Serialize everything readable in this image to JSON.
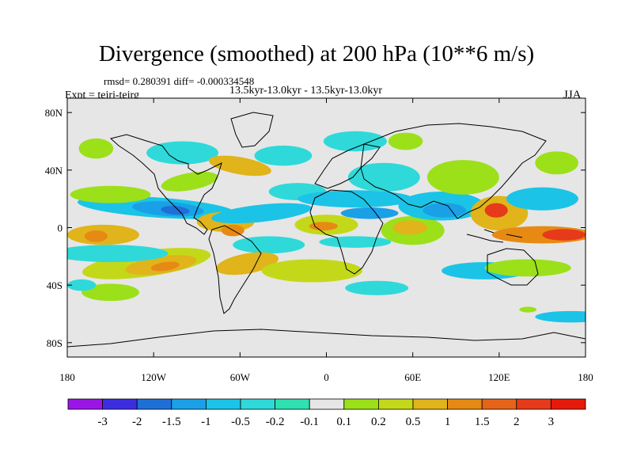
{
  "title": "Divergence (smoothed) at 200 hPa (10**6 m/s)",
  "stats": "rmsd= 0.280391 diff= -0.000334548",
  "period": "13.5kyr-13.0kyr - 13.5kyr-13.0kyr",
  "experiment": "Expt = tejrj-tejrg",
  "season": "JJA",
  "map": {
    "projection": "cylindrical equidistant",
    "lon_range": [
      -180,
      180
    ],
    "lat_range": [
      -90,
      90
    ],
    "lat_ticks": [
      {
        "value": 80,
        "label": "80N"
      },
      {
        "value": 40,
        "label": "40N"
      },
      {
        "value": 0,
        "label": "0"
      },
      {
        "value": -40,
        "label": "40S"
      },
      {
        "value": -80,
        "label": "80S"
      }
    ],
    "lon_ticks": [
      {
        "value": -180,
        "label": "180"
      },
      {
        "value": -120,
        "label": "120W"
      },
      {
        "value": -60,
        "label": "60W"
      },
      {
        "value": 0,
        "label": "0"
      },
      {
        "value": 60,
        "label": "60E"
      },
      {
        "value": 120,
        "label": "120E"
      },
      {
        "value": 180,
        "label": "180"
      }
    ],
    "background_color": "#e6e6e6",
    "coastline_color": "#000000"
  },
  "colorbar": {
    "labels": [
      "-3",
      "-2",
      "-1.5",
      "-1",
      "-0.5",
      "-0.2",
      "-0.1",
      "0.1",
      "0.2",
      "0.5",
      "1",
      "1.5",
      "2",
      "3"
    ],
    "colors": [
      "#9a16e6",
      "#3c2ee0",
      "#1f6fd8",
      "#1aa0e6",
      "#1bc4e6",
      "#2fd9d9",
      "#2fe0b0",
      "#e6e6e6",
      "#9ce01a",
      "#c4d81a",
      "#e0b41a",
      "#e68a14",
      "#e6641a",
      "#e63a1a",
      "#e61a0a"
    ]
  },
  "field_blobs": [
    {
      "lon": -155,
      "lat": -5,
      "rx": 25,
      "ry": 7,
      "color": "#e0b41a",
      "rot": 0
    },
    {
      "lon": -160,
      "lat": -6,
      "rx": 8,
      "ry": 4,
      "color": "#e68a14",
      "rot": 0
    },
    {
      "lon": -125,
      "lat": -25,
      "rx": 45,
      "ry": 9,
      "color": "#c4d81a",
      "rot": -8
    },
    {
      "lon": -115,
      "lat": -26,
      "rx": 25,
      "ry": 6,
      "color": "#e0b41a",
      "rot": -8
    },
    {
      "lon": -112,
      "lat": -27,
      "rx": 10,
      "ry": 3,
      "color": "#e68a14",
      "rot": -8
    },
    {
      "lon": -118,
      "lat": 14,
      "rx": 55,
      "ry": 7,
      "color": "#1bc4e6",
      "rot": 4
    },
    {
      "lon": -110,
      "lat": 13,
      "rx": 25,
      "ry": 5,
      "color": "#1aa0e6",
      "rot": 4
    },
    {
      "lon": -105,
      "lat": 12,
      "rx": 10,
      "ry": 3,
      "color": "#1f6fd8",
      "rot": 4
    },
    {
      "lon": -150,
      "lat": 23,
      "rx": 28,
      "ry": 6,
      "color": "#9ce01a",
      "rot": 0
    },
    {
      "lon": -95,
      "lat": 32,
      "rx": 20,
      "ry": 6,
      "color": "#9ce01a",
      "rot": -10
    },
    {
      "lon": -100,
      "lat": 52,
      "rx": 25,
      "ry": 8,
      "color": "#2fd9d9",
      "rot": 0
    },
    {
      "lon": -150,
      "lat": -18,
      "rx": 40,
      "ry": 6,
      "color": "#2fd9d9",
      "rot": 0
    },
    {
      "lon": -160,
      "lat": 55,
      "rx": 12,
      "ry": 7,
      "color": "#9ce01a",
      "rot": 0
    },
    {
      "lon": -70,
      "lat": 4,
      "rx": 20,
      "ry": 7,
      "color": "#e0b41a",
      "rot": 0
    },
    {
      "lon": -65,
      "lat": -2,
      "rx": 8,
      "ry": 4,
      "color": "#e68a14",
      "rot": 0
    },
    {
      "lon": -45,
      "lat": 10,
      "rx": 35,
      "ry": 6,
      "color": "#1bc4e6",
      "rot": -6
    },
    {
      "lon": -40,
      "lat": -12,
      "rx": 25,
      "ry": 6,
      "color": "#2fd9d9",
      "rot": 0
    },
    {
      "lon": -55,
      "lat": -25,
      "rx": 22,
      "ry": 7,
      "color": "#e0b41a",
      "rot": -10
    },
    {
      "lon": -60,
      "lat": 43,
      "rx": 22,
      "ry": 6,
      "color": "#e0b41a",
      "rot": 10
    },
    {
      "lon": -30,
      "lat": 50,
      "rx": 20,
      "ry": 7,
      "color": "#2fd9d9",
      "rot": 0
    },
    {
      "lon": -20,
      "lat": 25,
      "rx": 20,
      "ry": 6,
      "color": "#2fd9d9",
      "rot": 0
    },
    {
      "lon": 0,
      "lat": 2,
      "rx": 22,
      "ry": 7,
      "color": "#c4d81a",
      "rot": 0
    },
    {
      "lon": -2,
      "lat": 1,
      "rx": 10,
      "ry": 3,
      "color": "#e68a14",
      "rot": 0
    },
    {
      "lon": 20,
      "lat": 20,
      "rx": 40,
      "ry": 6,
      "color": "#1bc4e6",
      "rot": 0
    },
    {
      "lon": 30,
      "lat": 10,
      "rx": 20,
      "ry": 4,
      "color": "#1aa0e6",
      "rot": 0
    },
    {
      "lon": 20,
      "lat": -10,
      "rx": 25,
      "ry": 4,
      "color": "#2fd9d9",
      "rot": 0
    },
    {
      "lon": -10,
      "lat": -30,
      "rx": 35,
      "ry": 8,
      "color": "#c4d81a",
      "rot": 0
    },
    {
      "lon": 35,
      "lat": -42,
      "rx": 22,
      "ry": 5,
      "color": "#2fd9d9",
      "rot": 0
    },
    {
      "lon": 40,
      "lat": 35,
      "rx": 25,
      "ry": 10,
      "color": "#2fd9d9",
      "rot": 0
    },
    {
      "lon": 20,
      "lat": 60,
      "rx": 22,
      "ry": 7,
      "color": "#2fd9d9",
      "rot": 0
    },
    {
      "lon": 55,
      "lat": 60,
      "rx": 12,
      "ry": 6,
      "color": "#9ce01a",
      "rot": 0
    },
    {
      "lon": 60,
      "lat": -2,
      "rx": 22,
      "ry": 10,
      "color": "#9ce01a",
      "rot": 0
    },
    {
      "lon": 58,
      "lat": 0,
      "rx": 12,
      "ry": 5,
      "color": "#e0b41a",
      "rot": 0
    },
    {
      "lon": 80,
      "lat": 15,
      "rx": 30,
      "ry": 10,
      "color": "#1bc4e6",
      "rot": 0
    },
    {
      "lon": 82,
      "lat": 12,
      "rx": 15,
      "ry": 5,
      "color": "#1aa0e6",
      "rot": 0
    },
    {
      "lon": 95,
      "lat": 35,
      "rx": 25,
      "ry": 12,
      "color": "#9ce01a",
      "rot": 0
    },
    {
      "lon": 120,
      "lat": 10,
      "rx": 20,
      "ry": 12,
      "color": "#e0b41a",
      "rot": 0
    },
    {
      "lon": 118,
      "lat": 12,
      "rx": 8,
      "ry": 5,
      "color": "#e63a1a",
      "rot": 0
    },
    {
      "lon": 150,
      "lat": -5,
      "rx": 35,
      "ry": 6,
      "color": "#e68a14",
      "rot": 0
    },
    {
      "lon": 165,
      "lat": -5,
      "rx": 15,
      "ry": 4,
      "color": "#e63a1a",
      "rot": 0
    },
    {
      "lon": 150,
      "lat": 20,
      "rx": 25,
      "ry": 8,
      "color": "#1bc4e6",
      "rot": 0
    },
    {
      "lon": 110,
      "lat": -30,
      "rx": 30,
      "ry": 6,
      "color": "#1bc4e6",
      "rot": 0
    },
    {
      "lon": 140,
      "lat": -28,
      "rx": 30,
      "ry": 6,
      "color": "#9ce01a",
      "rot": 0
    },
    {
      "lon": 160,
      "lat": 45,
      "rx": 15,
      "ry": 8,
      "color": "#9ce01a",
      "rot": 0
    },
    {
      "lon": 170,
      "lat": -62,
      "rx": 25,
      "ry": 4,
      "color": "#1bc4e6",
      "rot": 0
    },
    {
      "lon": 140,
      "lat": -57,
      "rx": 6,
      "ry": 2,
      "color": "#9ce01a",
      "rot": 0
    },
    {
      "lon": -150,
      "lat": -45,
      "rx": 20,
      "ry": 6,
      "color": "#9ce01a",
      "rot": 0
    },
    {
      "lon": -170,
      "lat": -40,
      "rx": 10,
      "ry": 4,
      "color": "#2fd9d9",
      "rot": 0
    }
  ]
}
